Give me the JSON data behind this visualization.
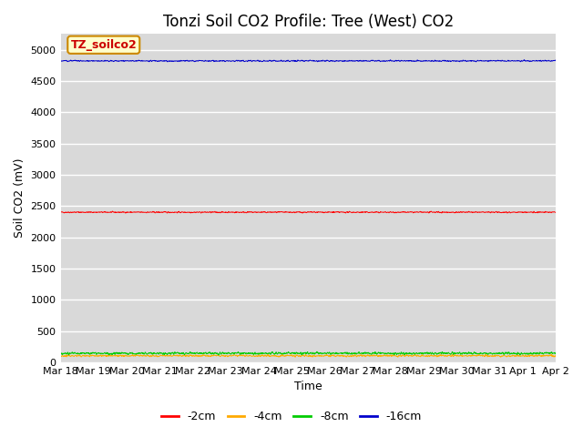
{
  "title": "Tonzi Soil CO2 Profile: Tree (West) CO2",
  "xlabel": "Time",
  "ylabel": "Soil CO2 (mV)",
  "label_box": "TZ_soilco2",
  "label_box_facecolor": "#ffffcc",
  "label_box_edgecolor": "#cc8800",
  "label_box_textcolor": "#cc0000",
  "bg_color": "#d9d9d9",
  "fig_bg": "#ffffff",
  "ylim": [
    0,
    5250
  ],
  "yticks": [
    0,
    500,
    1000,
    1500,
    2000,
    2500,
    3000,
    3500,
    4000,
    4500,
    5000
  ],
  "n_points": 2000,
  "series": [
    {
      "label": "-2cm",
      "color": "#ff0000",
      "mean": 2400,
      "noise": 8,
      "linewidth": 0.7
    },
    {
      "label": "-4cm",
      "color": "#ffaa00",
      "mean": 105,
      "noise": 12,
      "linewidth": 0.7
    },
    {
      "label": "-8cm",
      "color": "#00cc00",
      "mean": 145,
      "noise": 15,
      "linewidth": 0.7
    },
    {
      "label": "-16cm",
      "color": "#0000cc",
      "mean": 4820,
      "noise": 8,
      "linewidth": 0.7
    }
  ],
  "xtick_labels": [
    "Mar 18",
    "Mar 19",
    "Mar 20",
    "Mar 21",
    "Mar 22",
    "Mar 23",
    "Mar 24",
    "Mar 25",
    "Mar 26",
    "Mar 27",
    "Mar 28",
    "Mar 29",
    "Mar 30",
    "Mar 31",
    "Apr 1",
    "Apr 2"
  ],
  "grid_color": "#ffffff",
  "title_fontsize": 12,
  "axis_label_fontsize": 9,
  "tick_fontsize": 8,
  "legend_fontsize": 9
}
